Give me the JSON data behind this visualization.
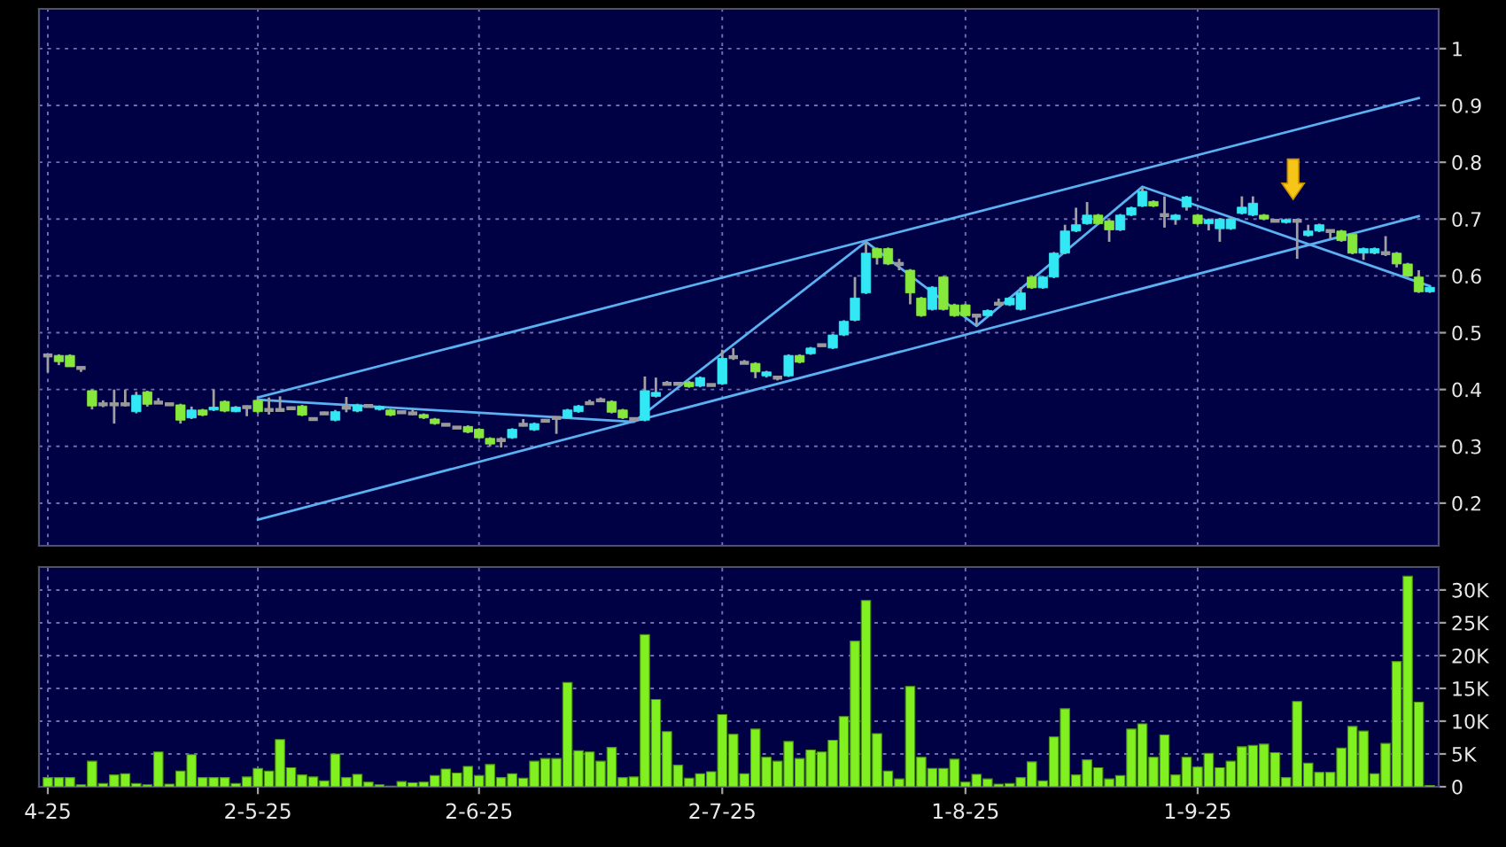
{
  "chart_data": [
    {
      "type": "candlestick",
      "categories": [
        null,
        null,
        null,
        null,
        null,
        null,
        null,
        null,
        null,
        null,
        null,
        null,
        null,
        null,
        null,
        null,
        null,
        null,
        null,
        null,
        null,
        null,
        null,
        null,
        null,
        null,
        null,
        null,
        null,
        null,
        null,
        null,
        null,
        null,
        null,
        null,
        null,
        null,
        null,
        null,
        null,
        null,
        null,
        null,
        null,
        null,
        null,
        null,
        null,
        null,
        null,
        null,
        null,
        null,
        null,
        null,
        null,
        null,
        null,
        null,
        null,
        null,
        null,
        null,
        null,
        null,
        null,
        null,
        null,
        null,
        null,
        null,
        null,
        null,
        null,
        null,
        null,
        null,
        null,
        null,
        null,
        null,
        null,
        null,
        null,
        null,
        null,
        null,
        null,
        null,
        null,
        null,
        null,
        null,
        null,
        null,
        null,
        null,
        null,
        null,
        null,
        null,
        null,
        null,
        null,
        null,
        null,
        null,
        null,
        null,
        null,
        null,
        null,
        null,
        null,
        null,
        null,
        null,
        null,
        null,
        null,
        null,
        null,
        null,
        null,
        null
      ],
      "ohlc": [
        [
          0.46,
          0.462,
          0.43,
          0.46
        ],
        [
          0.46,
          0.462,
          0.443,
          0.449
        ],
        [
          0.46,
          0.462,
          0.44,
          0.44
        ],
        [
          0.438,
          0.44,
          0.431,
          0.438
        ],
        [
          0.398,
          0.4,
          0.365,
          0.371
        ],
        [
          0.374,
          0.381,
          0.369,
          0.374
        ],
        [
          0.374,
          0.4,
          0.34,
          0.374
        ],
        [
          0.374,
          0.4,
          0.37,
          0.374
        ],
        [
          0.361,
          0.396,
          0.358,
          0.39
        ],
        [
          0.396,
          0.398,
          0.37,
          0.374
        ],
        [
          0.377,
          0.385,
          0.376,
          0.377
        ],
        [
          0.374,
          0.376,
          0.372,
          0.374
        ],
        [
          0.373,
          0.375,
          0.34,
          0.346
        ],
        [
          0.35,
          0.37,
          0.348,
          0.364
        ],
        [
          0.364,
          0.366,
          0.353,
          0.355
        ],
        [
          0.364,
          0.4,
          0.362,
          0.369
        ],
        [
          0.379,
          0.381,
          0.36,
          0.362
        ],
        [
          0.361,
          0.371,
          0.36,
          0.369
        ],
        [
          0.369,
          0.372,
          0.353,
          0.369
        ],
        [
          0.381,
          0.384,
          0.358,
          0.361
        ],
        [
          0.364,
          0.386,
          0.356,
          0.364
        ],
        [
          0.364,
          0.388,
          0.362,
          0.364
        ],
        [
          0.367,
          0.37,
          0.365,
          0.367
        ],
        [
          0.371,
          0.373,
          0.353,
          0.355
        ],
        [
          0.348,
          0.35,
          0.347,
          0.348
        ],
        [
          0.358,
          0.361,
          0.356,
          0.358
        ],
        [
          0.346,
          0.364,
          0.344,
          0.361
        ],
        [
          0.368,
          0.387,
          0.36,
          0.368
        ],
        [
          0.362,
          0.375,
          0.36,
          0.373
        ],
        [
          0.371,
          0.373,
          0.369,
          0.371
        ],
        [
          0.365,
          0.372,
          0.363,
          0.37
        ],
        [
          0.364,
          0.366,
          0.353,
          0.355
        ],
        [
          0.36,
          0.362,
          0.358,
          0.36
        ],
        [
          0.358,
          0.365,
          0.355,
          0.358
        ],
        [
          0.356,
          0.358,
          0.348,
          0.35
        ],
        [
          0.348,
          0.35,
          0.338,
          0.34
        ],
        [
          0.338,
          0.34,
          0.336,
          0.338
        ],
        [
          0.333,
          0.335,
          0.331,
          0.333
        ],
        [
          0.335,
          0.337,
          0.323,
          0.325
        ],
        [
          0.33,
          0.332,
          0.313,
          0.315
        ],
        [
          0.314,
          0.316,
          0.3,
          0.304
        ],
        [
          0.311,
          0.316,
          0.298,
          0.311
        ],
        [
          0.315,
          0.332,
          0.313,
          0.33
        ],
        [
          0.338,
          0.348,
          0.335,
          0.338
        ],
        [
          0.329,
          0.342,
          0.327,
          0.34
        ],
        [
          0.345,
          0.347,
          0.343,
          0.345
        ],
        [
          0.35,
          0.352,
          0.322,
          0.35
        ],
        [
          0.35,
          0.366,
          0.348,
          0.364
        ],
        [
          0.361,
          0.373,
          0.359,
          0.371
        ],
        [
          0.376,
          0.382,
          0.374,
          0.376
        ],
        [
          0.381,
          0.386,
          0.378,
          0.381
        ],
        [
          0.379,
          0.381,
          0.358,
          0.36
        ],
        [
          0.364,
          0.366,
          0.348,
          0.35
        ],
        [
          0.348,
          0.35,
          0.346,
          0.348
        ],
        [
          0.346,
          0.423,
          0.344,
          0.398
        ],
        [
          0.388,
          0.421,
          0.386,
          0.395
        ],
        [
          0.41,
          0.415,
          0.408,
          0.41
        ],
        [
          0.41,
          0.413,
          0.408,
          0.41
        ],
        [
          0.413,
          0.415,
          0.403,
          0.405
        ],
        [
          0.406,
          0.423,
          0.404,
          0.421
        ],
        [
          0.408,
          0.41,
          0.406,
          0.408
        ],
        [
          0.41,
          0.47,
          0.408,
          0.455
        ],
        [
          0.457,
          0.473,
          0.452,
          0.457
        ],
        [
          0.447,
          0.452,
          0.445,
          0.447
        ],
        [
          0.446,
          0.448,
          0.42,
          0.431
        ],
        [
          0.424,
          0.433,
          0.421,
          0.431
        ],
        [
          0.421,
          0.423,
          0.416,
          0.421
        ],
        [
          0.424,
          0.462,
          0.422,
          0.46
        ],
        [
          0.46,
          0.462,
          0.446,
          0.448
        ],
        [
          0.463,
          0.475,
          0.461,
          0.473
        ],
        [
          0.478,
          0.48,
          0.476,
          0.478
        ],
        [
          0.473,
          0.498,
          0.471,
          0.496
        ],
        [
          0.496,
          0.522,
          0.494,
          0.52
        ],
        [
          0.522,
          0.598,
          0.52,
          0.561
        ],
        [
          0.57,
          0.66,
          0.568,
          0.64
        ],
        [
          0.648,
          0.65,
          0.62,
          0.632
        ],
        [
          0.648,
          0.65,
          0.619,
          0.621
        ],
        [
          0.621,
          0.63,
          0.61,
          0.621
        ],
        [
          0.61,
          0.612,
          0.55,
          0.57
        ],
        [
          0.561,
          0.563,
          0.528,
          0.53
        ],
        [
          0.541,
          0.582,
          0.539,
          0.58
        ],
        [
          0.598,
          0.6,
          0.539,
          0.541
        ],
        [
          0.549,
          0.551,
          0.528,
          0.53
        ],
        [
          0.549,
          0.551,
          0.528,
          0.53
        ],
        [
          0.53,
          0.532,
          0.512,
          0.53
        ],
        [
          0.53,
          0.541,
          0.528,
          0.539
        ],
        [
          0.551,
          0.56,
          0.549,
          0.551
        ],
        [
          0.549,
          0.563,
          0.547,
          0.561
        ],
        [
          0.541,
          0.58,
          0.539,
          0.57
        ],
        [
          0.598,
          0.6,
          0.577,
          0.579
        ],
        [
          0.579,
          0.6,
          0.577,
          0.598
        ],
        [
          0.598,
          0.642,
          0.596,
          0.64
        ],
        [
          0.64,
          0.69,
          0.638,
          0.679
        ],
        [
          0.679,
          0.72,
          0.677,
          0.69
        ],
        [
          0.692,
          0.73,
          0.69,
          0.707
        ],
        [
          0.707,
          0.709,
          0.69,
          0.692
        ],
        [
          0.697,
          0.699,
          0.66,
          0.681
        ],
        [
          0.681,
          0.709,
          0.679,
          0.707
        ],
        [
          0.707,
          0.722,
          0.705,
          0.72
        ],
        [
          0.723,
          0.755,
          0.721,
          0.749
        ],
        [
          0.731,
          0.733,
          0.721,
          0.723
        ],
        [
          0.707,
          0.74,
          0.685,
          0.707
        ],
        [
          0.699,
          0.709,
          0.69,
          0.707
        ],
        [
          0.721,
          0.741,
          0.715,
          0.739
        ],
        [
          0.707,
          0.709,
          0.69,
          0.692
        ],
        [
          0.692,
          0.701,
          0.68,
          0.699
        ],
        [
          0.683,
          0.702,
          0.66,
          0.7
        ],
        [
          0.683,
          0.702,
          0.681,
          0.7
        ],
        [
          0.71,
          0.74,
          0.708,
          0.721
        ],
        [
          0.707,
          0.74,
          0.705,
          0.728
        ],
        [
          0.707,
          0.709,
          0.698,
          0.7
        ],
        [
          0.697,
          0.699,
          0.695,
          0.697
        ],
        [
          0.694,
          0.701,
          0.692,
          0.699
        ],
        [
          0.697,
          0.7,
          0.63,
          0.697
        ],
        [
          0.671,
          0.69,
          0.669,
          0.679
        ],
        [
          0.679,
          0.692,
          0.677,
          0.69
        ],
        [
          0.679,
          0.681,
          0.665,
          0.679
        ],
        [
          0.679,
          0.681,
          0.66,
          0.662
        ],
        [
          0.673,
          0.675,
          0.638,
          0.64
        ],
        [
          0.64,
          0.65,
          0.628,
          0.648
        ],
        [
          0.64,
          0.65,
          0.638,
          0.648
        ],
        [
          0.64,
          0.67,
          0.635,
          0.64
        ],
        [
          0.64,
          0.642,
          0.615,
          0.621
        ],
        [
          0.621,
          0.623,
          0.598,
          0.6
        ],
        [
          0.598,
          0.61,
          0.57,
          0.572
        ],
        [
          0.572,
          0.582,
          0.57,
          0.58
        ]
      ],
      "colors": [
        "#9a9a9a",
        "#86e83a",
        "#86e83a",
        "#9a9a9a",
        "#86e83a",
        "#9a9a9a",
        "#9a9a9a",
        "#9a9a9a",
        "#33e8f5",
        "#86e83a",
        "#9a9a9a",
        "#9a9a9a",
        "#86e83a",
        "#33e8f5",
        "#86e83a",
        "#33e8f5",
        "#86e83a",
        "#33e8f5",
        "#9a9a9a",
        "#86e83a",
        "#9a9a9a",
        "#9a9a9a",
        "#9a9a9a",
        "#86e83a",
        "#9a9a9a",
        "#9a9a9a",
        "#33e8f5",
        "#9a9a9a",
        "#33e8f5",
        "#9a9a9a",
        "#33e8f5",
        "#86e83a",
        "#9a9a9a",
        "#9a9a9a",
        "#86e83a",
        "#86e83a",
        "#9a9a9a",
        "#9a9a9a",
        "#86e83a",
        "#86e83a",
        "#86e83a",
        "#9a9a9a",
        "#33e8f5",
        "#9a9a9a",
        "#33e8f5",
        "#9a9a9a",
        "#9a9a9a",
        "#33e8f5",
        "#33e8f5",
        "#9a9a9a",
        "#9a9a9a",
        "#86e83a",
        "#86e83a",
        "#9a9a9a",
        "#33e8f5",
        "#33e8f5",
        "#9a9a9a",
        "#9a9a9a",
        "#86e83a",
        "#33e8f5",
        "#9a9a9a",
        "#33e8f5",
        "#9a9a9a",
        "#9a9a9a",
        "#86e83a",
        "#33e8f5",
        "#9a9a9a",
        "#33e8f5",
        "#86e83a",
        "#33e8f5",
        "#9a9a9a",
        "#33e8f5",
        "#33e8f5",
        "#33e8f5",
        "#33e8f5",
        "#86e83a",
        "#86e83a",
        "#9a9a9a",
        "#86e83a",
        "#86e83a",
        "#33e8f5",
        "#86e83a",
        "#86e83a",
        "#86e83a",
        "#9a9a9a",
        "#33e8f5",
        "#9a9a9a",
        "#33e8f5",
        "#33e8f5",
        "#86e83a",
        "#33e8f5",
        "#33e8f5",
        "#33e8f5",
        "#33e8f5",
        "#33e8f5",
        "#86e83a",
        "#86e83a",
        "#33e8f5",
        "#33e8f5",
        "#33e8f5",
        "#86e83a",
        "#9a9a9a",
        "#33e8f5",
        "#33e8f5",
        "#86e83a",
        "#33e8f5",
        "#33e8f5",
        "#33e8f5",
        "#33e8f5",
        "#33e8f5",
        "#86e83a",
        "#9a9a9a",
        "#33e8f5",
        "#9a9a9a",
        "#33e8f5",
        "#33e8f5",
        "#9a9a9a",
        "#86e83a",
        "#86e83a",
        "#33e8f5",
        "#33e8f5",
        "#9a9a9a",
        "#86e83a",
        "#86e83a",
        "#86e83a",
        "#33e8f5"
      ],
      "series": [
        {
          "type": "line",
          "color": "#5ab0f0",
          "values": [
            null,
            null,
            null,
            null,
            null,
            null,
            null,
            null,
            null,
            null,
            null,
            null,
            null,
            null,
            null,
            null,
            null,
            null,
            null,
            0.386,
            null,
            null,
            null,
            null,
            null,
            null,
            null,
            null,
            null,
            null,
            null,
            null,
            null,
            null,
            null,
            null,
            null,
            null,
            null,
            null,
            null,
            null,
            null,
            null,
            null,
            null,
            null,
            null,
            null,
            null,
            null,
            null,
            null,
            null,
            null,
            null,
            null,
            null,
            null,
            null,
            null,
            null,
            null,
            null,
            null,
            null,
            null,
            null,
            null,
            null,
            null,
            null,
            null,
            null,
            null,
            null,
            null,
            null,
            null,
            null,
            null,
            null,
            null,
            null,
            null,
            null,
            null,
            null,
            null,
            null,
            null,
            null,
            null,
            null,
            null,
            null,
            null,
            null,
            null,
            null,
            null,
            null,
            null,
            null,
            null,
            null,
            null,
            null,
            null,
            null,
            null,
            null,
            null,
            null,
            null,
            null,
            null,
            null,
            null,
            null,
            null,
            null,
            null,
            null,
            0.913,
            null
          ]
        },
        {
          "type": "line",
          "color": "#5ab0f0",
          "values": [
            null,
            null,
            null,
            null,
            null,
            null,
            null,
            null,
            null,
            null,
            null,
            null,
            null,
            null,
            null,
            null,
            null,
            null,
            null,
            0.171,
            null,
            null,
            null,
            null,
            null,
            null,
            null,
            null,
            null,
            null,
            null,
            null,
            null,
            null,
            null,
            null,
            null,
            null,
            null,
            null,
            null,
            null,
            null,
            null,
            null,
            null,
            null,
            null,
            null,
            null,
            null,
            null,
            null,
            null,
            null,
            null,
            null,
            null,
            null,
            null,
            null,
            null,
            null,
            null,
            null,
            null,
            null,
            null,
            null,
            null,
            null,
            null,
            null,
            null,
            null,
            null,
            null,
            null,
            null,
            null,
            null,
            null,
            null,
            null,
            null,
            null,
            null,
            null,
            null,
            null,
            null,
            null,
            null,
            null,
            null,
            null,
            null,
            null,
            null,
            null,
            null,
            null,
            null,
            null,
            null,
            null,
            null,
            null,
            null,
            null,
            null,
            null,
            null,
            null,
            null,
            null,
            null,
            null,
            null,
            null,
            null,
            null,
            null,
            null,
            0.705,
            null
          ]
        },
        {
          "type": "line",
          "color": "#5ab0f0",
          "values": [
            null,
            null,
            null,
            null,
            null,
            null,
            null,
            null,
            null,
            null,
            null,
            null,
            null,
            null,
            null,
            null,
            null,
            null,
            null,
            0.382,
            null,
            null,
            null,
            null,
            null,
            null,
            null,
            null,
            null,
            null,
            null,
            null,
            null,
            null,
            null,
            null,
            null,
            null,
            null,
            null,
            null,
            null,
            null,
            null,
            null,
            null,
            null,
            null,
            null,
            null,
            null,
            null,
            null,
            0.343,
            null,
            null,
            null,
            null,
            null,
            null,
            null,
            null,
            null,
            null,
            null,
            null,
            null,
            null,
            null,
            null,
            null,
            null,
            null,
            null,
            0.66,
            null,
            null,
            null,
            null,
            null,
            null,
            null,
            null,
            null,
            0.512,
            null,
            null,
            null,
            null,
            null,
            null,
            null,
            null,
            null,
            null,
            null,
            null,
            null,
            null,
            0.757,
            null,
            null,
            null,
            null,
            null,
            null,
            null,
            null,
            null,
            null,
            null,
            null,
            null,
            null,
            null,
            null,
            null,
            null,
            null,
            null,
            null,
            null,
            null,
            null,
            null,
            0.582
          ]
        }
      ],
      "ylim": [
        0.125,
        1.07
      ],
      "yticks": [
        0.2,
        0.3,
        0.4,
        0.5,
        0.6,
        0.7,
        0.8,
        0.9,
        1
      ],
      "grid": true,
      "tick_labels": "y"
    },
    {
      "type": "bar",
      "categories": [
        "4-25",
        null,
        null,
        null,
        null,
        null,
        null,
        null,
        null,
        null,
        null,
        null,
        null,
        null,
        null,
        null,
        null,
        null,
        null,
        "2-5-25",
        null,
        null,
        null,
        null,
        null,
        null,
        null,
        null,
        null,
        null,
        null,
        null,
        null,
        null,
        null,
        null,
        null,
        null,
        null,
        "2-6-25",
        null,
        null,
        null,
        null,
        null,
        null,
        null,
        null,
        null,
        null,
        null,
        null,
        null,
        null,
        null,
        null,
        null,
        null,
        null,
        null,
        null,
        "2-7-25",
        null,
        null,
        null,
        null,
        null,
        null,
        null,
        null,
        null,
        null,
        null,
        null,
        null,
        null,
        null,
        null,
        null,
        null,
        null,
        null,
        null,
        "1-8-25",
        null,
        null,
        null,
        null,
        null,
        null,
        null,
        null,
        null,
        null,
        null,
        null,
        null,
        null,
        null,
        null,
        null,
        null,
        null,
        null,
        "1-9-25",
        null,
        null,
        null,
        null,
        null,
        null,
        null,
        null,
        null,
        null,
        null,
        null,
        null,
        null,
        null,
        null,
        null,
        null,
        null,
        null,
        null
      ],
      "values": [
        1400,
        1400,
        1400,
        300,
        3900,
        500,
        1800,
        2000,
        500,
        300,
        5300,
        400,
        2400,
        4900,
        1400,
        1400,
        1400,
        500,
        1500,
        2800,
        2400,
        7200,
        2900,
        1800,
        1500,
        900,
        5000,
        1400,
        1900,
        700,
        300,
        100,
        800,
        600,
        700,
        1700,
        2700,
        2100,
        3100,
        1700,
        3400,
        1400,
        2000,
        1300,
        3900,
        4300,
        4300,
        15900,
        5500,
        5300,
        3900,
        6000,
        1400,
        1500,
        23200,
        13300,
        8400,
        3300,
        1300,
        2000,
        2300,
        11000,
        8000,
        2000,
        8800,
        4500,
        3900,
        6900,
        4300,
        5600,
        5300,
        7100,
        10700,
        22200,
        28400,
        8100,
        2400,
        1200,
        15300,
        4500,
        2800,
        2800,
        4200,
        700,
        1900,
        1200,
        400,
        500,
        1400,
        3800,
        900,
        7600,
        11900,
        1800,
        4100,
        2900,
        1200,
        1700,
        8800,
        9600,
        4500,
        7900,
        1800,
        4500,
        3000,
        5100,
        2900,
        3900,
        6100,
        6300,
        6500,
        5200,
        1400,
        13000,
        3600,
        2200,
        2200,
        5900,
        9200,
        8500,
        2000,
        6600,
        19100,
        32100,
        12900,
        200
      ],
      "color": "#80f020",
      "ylim": [
        0,
        33500
      ],
      "yticks": [
        0,
        {
          "value": 5000,
          "label": "5K"
        },
        {
          "value": 10000,
          "label": "10K"
        },
        {
          "value": 15000,
          "label": "15K"
        },
        {
          "value": 20000,
          "label": "20K"
        },
        {
          "value": 25000,
          "label": "25K"
        },
        {
          "value": 30000,
          "label": "30K"
        }
      ],
      "grid": true
    }
  ]
}
